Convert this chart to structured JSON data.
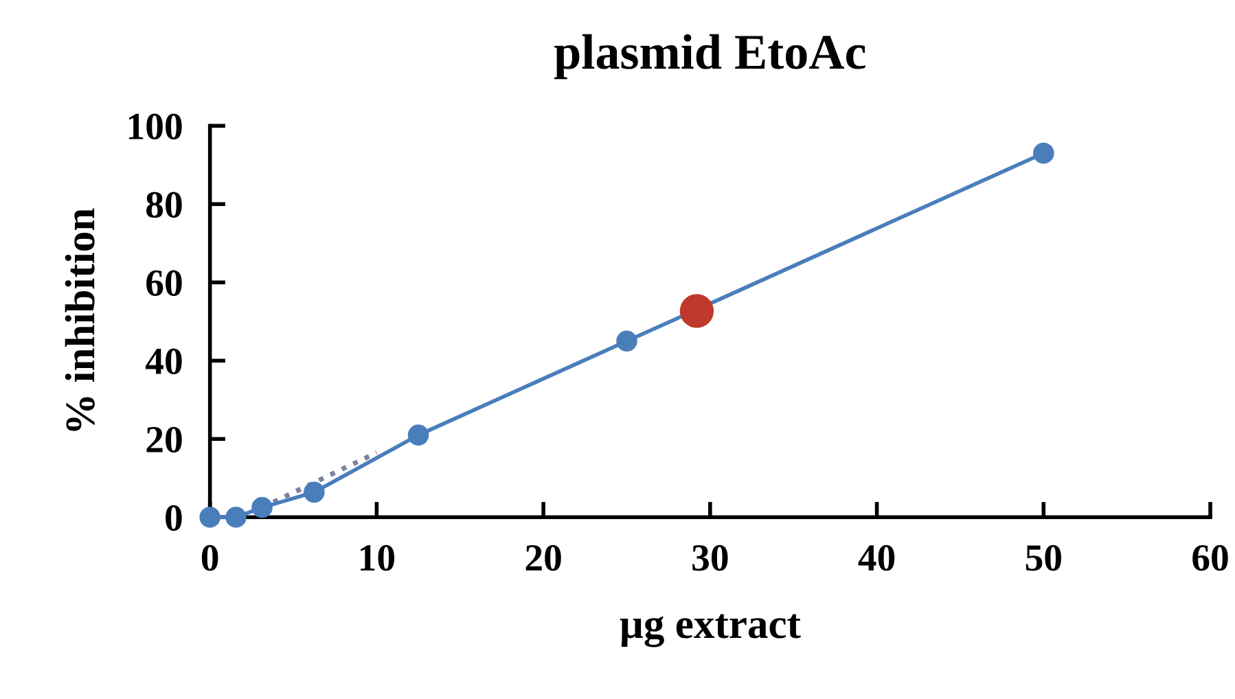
{
  "chart_data": {
    "type": "line",
    "title": "plasmid EtoAc",
    "xlabel": "µg extract",
    "ylabel": "% inhibition",
    "xlim": [
      0,
      60
    ],
    "xticks": [
      0,
      10,
      20,
      30,
      40,
      50,
      60
    ],
    "ylim": [
      0,
      100
    ],
    "yticks": [
      0,
      20,
      40,
      60,
      80,
      100
    ],
    "grid": false,
    "legend": false,
    "series": [
      {
        "color": "#4a7ebb",
        "marker": "circle",
        "line_style": "solid",
        "x": [
          0,
          1.56,
          3.125,
          6.25,
          12.5,
          25,
          50
        ],
        "values": [
          0,
          0,
          2.5,
          6.4,
          21,
          45,
          93
        ]
      },
      {
        "color": "#7f7f9f",
        "marker": "none",
        "line_style": "dotted",
        "x": [
          3.125,
          10
        ],
        "values": [
          2.5,
          16.5
        ]
      },
      {
        "type": "scatter",
        "color": "#c0392b",
        "marker": "circle",
        "x": [
          29.2
        ],
        "values": [
          52.7
        ]
      }
    ]
  }
}
